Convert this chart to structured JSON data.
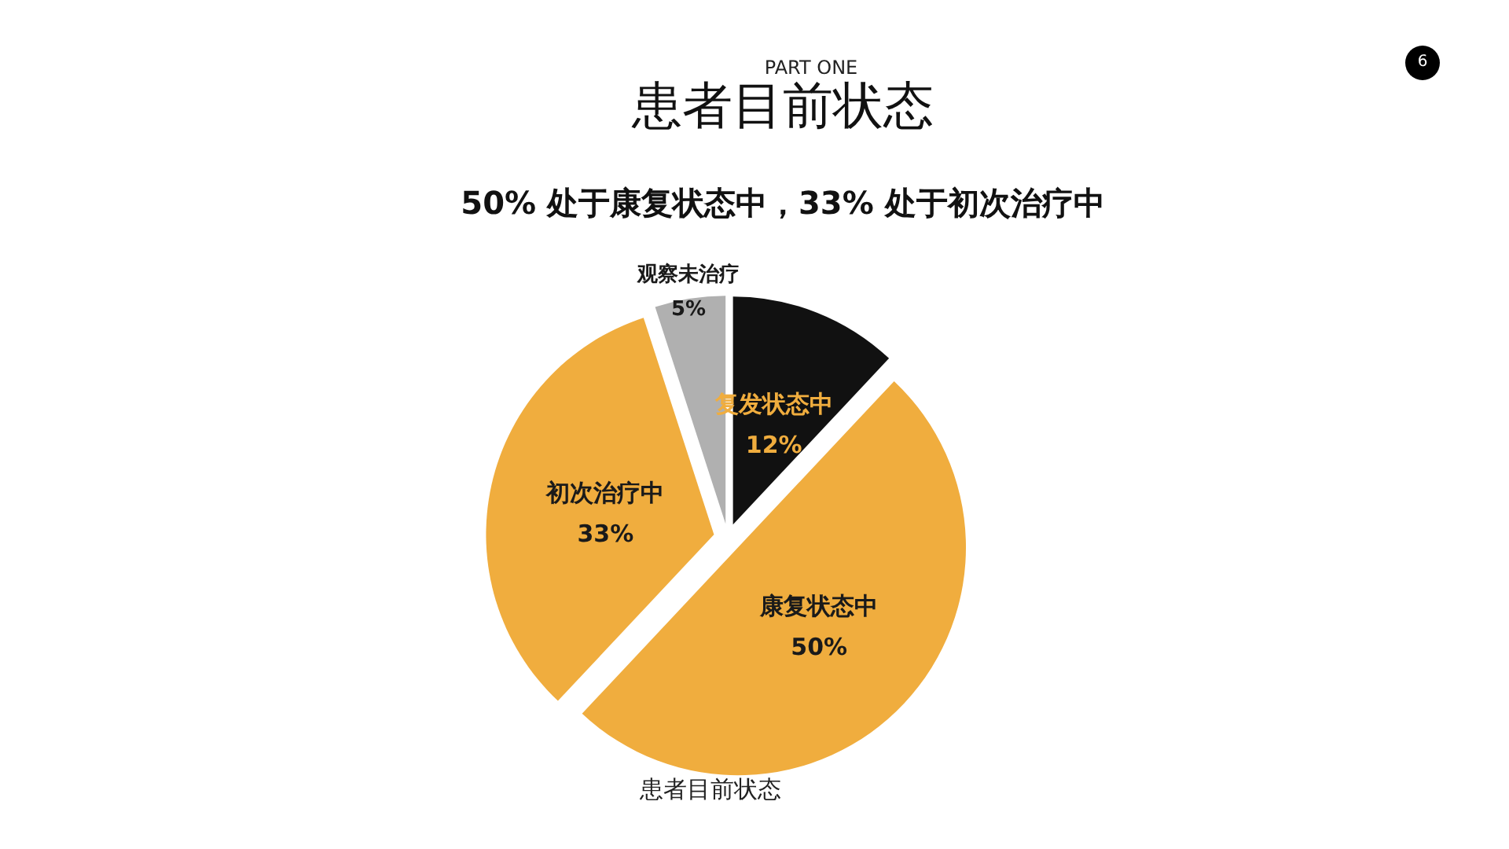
{
  "chart_data": {
    "type": "pie",
    "title": "患者目前状态",
    "subtitle": "50% 处于康复状态中，33% 处于初次治疗中",
    "categories": [
      "复发状态中",
      "康复状态中",
      "初次治疗中",
      "观察未治疗"
    ],
    "values": [
      12,
      50,
      33,
      5
    ],
    "colors": [
      "#111111",
      "#f0ad3e",
      "#f0ad3e",
      "#b0b0b0"
    ],
    "value_labels": [
      "12%",
      "50%",
      "33%",
      "5%"
    ],
    "annotations": [
      "PART ONE",
      "患者目前状态",
      "6"
    ]
  }
}
